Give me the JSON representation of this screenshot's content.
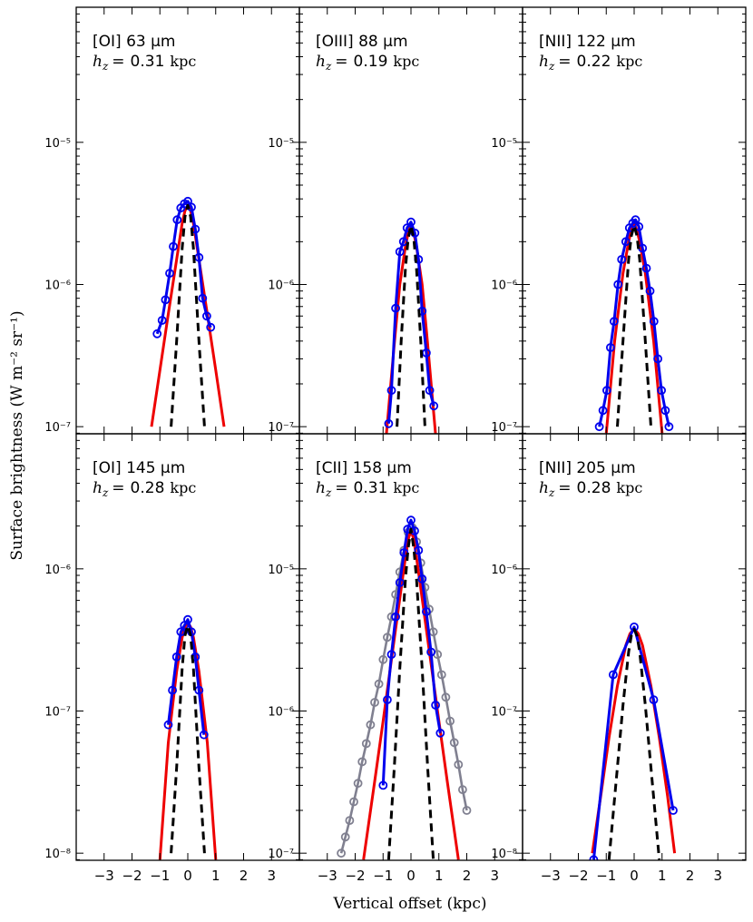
{
  "figure": {
    "ylabel": "Surface brightness (W m⁻² sr⁻¹)",
    "xlabel": "Vertical offset (kpc)",
    "hz_symbol": "h",
    "hz_sub": "z",
    "hz_eq": "=",
    "unit": "kpc",
    "colors": {
      "observed": "#0000ee",
      "model": "#ee0000",
      "beam": "#000000",
      "secondary": "#808090",
      "frame": "#000000"
    }
  },
  "chart_data": [
    {
      "type": "line",
      "title": "[OI] 63 μm",
      "hz": "0.31",
      "xlim": [
        -4,
        4
      ],
      "ylim_exp": [
        -7.05,
        -4.05
      ],
      "yticks": [
        {
          "exp": -7,
          "label": "10⁻⁷"
        },
        {
          "exp": -6,
          "label": "10⁻⁶"
        },
        {
          "exp": -5,
          "label": "10⁻⁵"
        }
      ],
      "xticks": [
        -3,
        -2,
        -1,
        0,
        1,
        2,
        3
      ],
      "xtick_labels": [
        "−3",
        "−2",
        "−1",
        "0",
        "1",
        "2",
        "3"
      ],
      "series": [
        {
          "name": "observed",
          "x": [
            -1.1,
            -0.92,
            -0.8,
            -0.65,
            -0.52,
            -0.38,
            -0.25,
            -0.12,
            0.0,
            0.13,
            0.27,
            0.4,
            0.53,
            0.68,
            0.82
          ],
          "y": [
            4.5e-07,
            5.6e-07,
            7.8e-07,
            1.2e-06,
            1.85e-06,
            2.85e-06,
            3.45e-06,
            3.7e-06,
            3.85e-06,
            3.5e-06,
            2.45e-06,
            1.55e-06,
            8e-07,
            6e-07,
            5e-07
          ]
        },
        {
          "name": "model",
          "x": [
            -1.3,
            -1.0,
            -0.7,
            -0.4,
            -0.2,
            -0.1,
            0.0,
            0.1,
            0.2,
            0.4,
            0.7,
            1.0,
            1.3
          ],
          "y": [
            1e-07,
            2.5e-07,
            6.2e-07,
            1.5e-06,
            2.7e-06,
            3.3e-06,
            3.6e-06,
            3.3e-06,
            2.7e-06,
            1.5e-06,
            6.2e-07,
            2.5e-07,
            1e-07
          ]
        },
        {
          "name": "beam",
          "x": [
            -0.6,
            -0.4,
            -0.2,
            -0.1,
            0.0,
            0.1,
            0.2,
            0.4,
            0.6
          ],
          "y": [
            1e-07,
            4e-07,
            1.8e-06,
            3e-06,
            3.6e-06,
            3e-06,
            1.8e-06,
            4e-07,
            1e-07
          ]
        }
      ]
    },
    {
      "type": "line",
      "title": "[OIII] 88 μm",
      "hz": "0.19",
      "xlim": [
        -4,
        4
      ],
      "ylim_exp": [
        -7.05,
        -4.05
      ],
      "yticks": [
        {
          "exp": -7,
          "label": "10⁻⁷"
        },
        {
          "exp": -6,
          "label": "10⁻⁶"
        },
        {
          "exp": -5,
          "label": "10⁻⁵"
        }
      ],
      "xticks": [
        -3,
        -2,
        -1,
        0,
        1,
        2,
        3
      ],
      "xtick_labels": [
        "−3",
        "−2",
        "−1",
        "0",
        "1",
        "2",
        "3"
      ],
      "series": [
        {
          "name": "observed",
          "x": [
            -0.8,
            -0.7,
            -0.55,
            -0.4,
            -0.27,
            -0.14,
            0.0,
            0.14,
            0.27,
            0.4,
            0.55,
            0.67,
            0.82
          ],
          "y": [
            1.05e-07,
            1.8e-07,
            6.8e-07,
            1.7e-06,
            2e-06,
            2.5e-06,
            2.75e-06,
            2.3e-06,
            1.5e-06,
            6.5e-07,
            3.3e-07,
            1.8e-07,
            1.4e-07
          ]
        },
        {
          "name": "model",
          "x": [
            -0.9,
            -0.6,
            -0.4,
            -0.2,
            -0.1,
            0.0,
            0.1,
            0.2,
            0.4,
            0.6,
            0.9
          ],
          "y": [
            8e-08,
            3.8e-07,
            1e-06,
            1.85e-06,
            2.3e-06,
            2.6e-06,
            2.3e-06,
            1.85e-06,
            1e-06,
            3.8e-07,
            8e-08
          ]
        },
        {
          "name": "beam",
          "x": [
            -0.5,
            -0.35,
            -0.2,
            -0.1,
            0.0,
            0.1,
            0.2,
            0.35,
            0.5
          ],
          "y": [
            1e-07,
            4e-07,
            1.3e-06,
            2.1e-06,
            2.6e-06,
            2.1e-06,
            1.3e-06,
            4e-07,
            1e-07
          ]
        }
      ]
    },
    {
      "type": "line",
      "title": "[NII] 122 μm",
      "hz": "0.22",
      "xlim": [
        -4,
        4
      ],
      "ylim_exp": [
        -7.05,
        -4.05
      ],
      "yticks": [
        {
          "exp": -7,
          "label": "10⁻⁷"
        },
        {
          "exp": -6,
          "label": "10⁻⁶"
        },
        {
          "exp": -5,
          "label": "10⁻⁵"
        }
      ],
      "xticks": [
        -3,
        -2,
        -1,
        0,
        1,
        2,
        3
      ],
      "xtick_labels": [
        "−3",
        "−2",
        "−1",
        "0",
        "1",
        "2",
        "3"
      ],
      "series": [
        {
          "name": "observed",
          "x": [
            -1.25,
            -1.12,
            -0.98,
            -0.85,
            -0.72,
            -0.58,
            -0.45,
            -0.3,
            -0.17,
            -0.05,
            0.05,
            0.17,
            0.3,
            0.44,
            0.57,
            0.71,
            0.85,
            0.98,
            1.12,
            1.25
          ],
          "y": [
            1e-07,
            1.3e-07,
            1.8e-07,
            3.6e-07,
            5.5e-07,
            1e-06,
            1.5e-06,
            2e-06,
            2.5e-06,
            2.7e-06,
            2.85e-06,
            2.55e-06,
            1.8e-06,
            1.3e-06,
            9e-07,
            5.5e-07,
            3e-07,
            1.8e-07,
            1.3e-07,
            1e-07
          ]
        },
        {
          "name": "model",
          "x": [
            -1.0,
            -0.7,
            -0.4,
            -0.2,
            -0.1,
            0.0,
            0.1,
            0.2,
            0.4,
            0.7,
            1.0
          ],
          "y": [
            9e-08,
            4e-07,
            1.2e-06,
            2e-06,
            2.4e-06,
            2.7e-06,
            2.4e-06,
            2e-06,
            1.2e-06,
            4e-07,
            9e-08
          ]
        },
        {
          "name": "beam",
          "x": [
            -0.6,
            -0.4,
            -0.2,
            -0.1,
            0.0,
            0.1,
            0.2,
            0.4,
            0.6
          ],
          "y": [
            1e-07,
            4e-07,
            1.5e-06,
            2.2e-06,
            2.6e-06,
            2.2e-06,
            1.5e-06,
            4e-07,
            1e-07
          ]
        }
      ]
    },
    {
      "type": "line",
      "title": "[OI] 145 μm",
      "hz": "0.28",
      "xlim": [
        -4,
        4
      ],
      "ylim_exp": [
        -8.05,
        -5.05
      ],
      "yticks": [
        {
          "exp": -8,
          "label": "10⁻⁸"
        },
        {
          "exp": -7,
          "label": "10⁻⁷"
        },
        {
          "exp": -6,
          "label": "10⁻⁶"
        }
      ],
      "xticks": [
        -3,
        -2,
        -1,
        0,
        1,
        2,
        3
      ],
      "xtick_labels": [
        "−3",
        "−2",
        "−1",
        "0",
        "1",
        "2",
        "3"
      ],
      "series": [
        {
          "name": "observed",
          "x": [
            -0.7,
            -0.55,
            -0.4,
            -0.25,
            -0.12,
            0.0,
            0.13,
            0.27,
            0.4,
            0.58
          ],
          "y": [
            8e-08,
            1.4e-07,
            2.4e-07,
            3.6e-07,
            4e-07,
            4.4e-07,
            3.6e-07,
            2.4e-07,
            1.4e-07,
            6.8e-08
          ]
        },
        {
          "name": "model",
          "x": [
            -1.0,
            -0.7,
            -0.4,
            -0.2,
            -0.1,
            0.0,
            0.1,
            0.2,
            0.4,
            0.7,
            1.0
          ],
          "y": [
            9e-09,
            6e-08,
            1.9e-07,
            3.3e-07,
            3.9e-07,
            4.2e-07,
            3.9e-07,
            3.3e-07,
            1.9e-07,
            6e-08,
            9e-09
          ]
        },
        {
          "name": "beam",
          "x": [
            -0.6,
            -0.4,
            -0.2,
            -0.1,
            0.0,
            0.1,
            0.2,
            0.4,
            0.6
          ],
          "y": [
            1e-08,
            4e-08,
            2e-07,
            3.4e-07,
            4e-07,
            3.4e-07,
            2e-07,
            4e-08,
            1e-08
          ]
        }
      ]
    },
    {
      "type": "line",
      "title": "[CII] 158 μm",
      "hz": "0.31",
      "xlim": [
        -4,
        4
      ],
      "ylim_exp": [
        -7.05,
        -4.05
      ],
      "yticks": [
        {
          "exp": -7,
          "label": "10⁻⁷"
        },
        {
          "exp": -6,
          "label": "10⁻⁶"
        },
        {
          "exp": -5,
          "label": "10⁻⁵"
        }
      ],
      "xticks": [
        -3,
        -2,
        -1,
        0,
        1,
        2,
        3
      ],
      "xtick_labels": [
        "−3",
        "−2",
        "−1",
        "0",
        "1",
        "2",
        "3"
      ],
      "series": [
        {
          "name": "secondary",
          "x": [
            -2.5,
            -2.35,
            -2.2,
            -2.05,
            -1.9,
            -1.75,
            -1.6,
            -1.45,
            -1.3,
            -1.15,
            -1.0,
            -0.85,
            -0.7,
            -0.55,
            -0.4,
            -0.25,
            -0.1,
            0.05,
            0.2,
            0.35,
            0.5,
            0.65,
            0.8,
            0.95,
            1.1,
            1.25,
            1.4,
            1.55,
            1.7,
            1.85,
            2.0
          ],
          "y": [
            1e-07,
            1.3e-07,
            1.7e-07,
            2.3e-07,
            3.1e-07,
            4.4e-07,
            5.9e-07,
            8e-07,
            1.15e-06,
            1.55e-06,
            2.3e-06,
            3.3e-06,
            4.6e-06,
            6.6e-06,
            9.5e-06,
            1.35e-05,
            1.8e-05,
            1.95e-05,
            1.55e-05,
            1.1e-05,
            7.4e-06,
            5.2e-06,
            3.6e-06,
            2.5e-06,
            1.8e-06,
            1.25e-06,
            8.5e-07,
            6e-07,
            4.2e-07,
            2.8e-07,
            2e-07
          ]
        },
        {
          "name": "observed",
          "x": [
            -1.0,
            -0.85,
            -0.7,
            -0.55,
            -0.4,
            -0.25,
            -0.12,
            0.0,
            0.13,
            0.27,
            0.4,
            0.55,
            0.72,
            0.88,
            1.05
          ],
          "y": [
            3e-07,
            1.2e-06,
            2.5e-06,
            4.6e-06,
            8e-06,
            1.3e-05,
            1.9e-05,
            2.2e-05,
            1.85e-05,
            1.35e-05,
            8.5e-06,
            5e-06,
            2.6e-06,
            1.1e-06,
            7e-07
          ]
        },
        {
          "name": "model",
          "x": [
            -1.7,
            -1.3,
            -1.0,
            -0.7,
            -0.4,
            -0.2,
            -0.1,
            0.0,
            0.1,
            0.2,
            0.4,
            0.7,
            1.0,
            1.3,
            1.7
          ],
          "y": [
            9e-08,
            3.2e-07,
            8.5e-07,
            2.3e-06,
            6.2e-06,
            1.2e-05,
            1.6e-05,
            1.9e-05,
            1.6e-05,
            1.2e-05,
            6.2e-06,
            2.3e-06,
            8.5e-07,
            3.2e-07,
            9e-08
          ]
        },
        {
          "name": "beam",
          "x": [
            -0.8,
            -0.6,
            -0.4,
            -0.2,
            -0.1,
            0.0,
            0.1,
            0.2,
            0.4,
            0.6,
            0.8
          ],
          "y": [
            9e-08,
            4e-07,
            2e-06,
            8.5e-06,
            1.4e-05,
            1.9e-05,
            1.4e-05,
            8.5e-06,
            2e-06,
            4e-07,
            9e-08
          ]
        }
      ]
    },
    {
      "type": "line",
      "title": "[NII] 205 μm",
      "hz": "0.28",
      "xlim": [
        -4,
        4
      ],
      "ylim_exp": [
        -8.05,
        -5.05
      ],
      "yticks": [
        {
          "exp": -8,
          "label": "10⁻⁸"
        },
        {
          "exp": -7,
          "label": "10⁻⁷"
        },
        {
          "exp": -6,
          "label": "10⁻⁶"
        }
      ],
      "xticks": [
        -3,
        -2,
        -1,
        0,
        1,
        2,
        3
      ],
      "xtick_labels": [
        "−3",
        "−2",
        "−1",
        "0",
        "1",
        "2",
        "3"
      ],
      "series": [
        {
          "name": "observed",
          "x": [
            -1.45,
            -0.75,
            0.0,
            0.7,
            1.4
          ],
          "y": [
            9e-09,
            1.8e-07,
            3.9e-07,
            1.2e-07,
            2e-08
          ]
        },
        {
          "name": "model",
          "x": [
            -1.5,
            -1.2,
            -0.9,
            -0.6,
            -0.3,
            -0.15,
            0.0,
            0.15,
            0.3,
            0.6,
            0.9,
            1.2,
            1.45
          ],
          "y": [
            1e-08,
            2.5e-08,
            6.5e-08,
            1.5e-07,
            2.9e-07,
            3.5e-07,
            3.8e-07,
            3.5e-07,
            2.9e-07,
            1.5e-07,
            6.5e-08,
            2.5e-08,
            1e-08
          ]
        },
        {
          "name": "beam",
          "x": [
            -0.9,
            -0.6,
            -0.4,
            -0.2,
            -0.1,
            0.0,
            0.1,
            0.2,
            0.4,
            0.6,
            0.9
          ],
          "y": [
            9e-09,
            4e-08,
            1.1e-07,
            2.6e-07,
            3.4e-07,
            3.75e-07,
            3.4e-07,
            2.6e-07,
            1.1e-07,
            4e-08,
            9e-09
          ]
        }
      ]
    }
  ]
}
